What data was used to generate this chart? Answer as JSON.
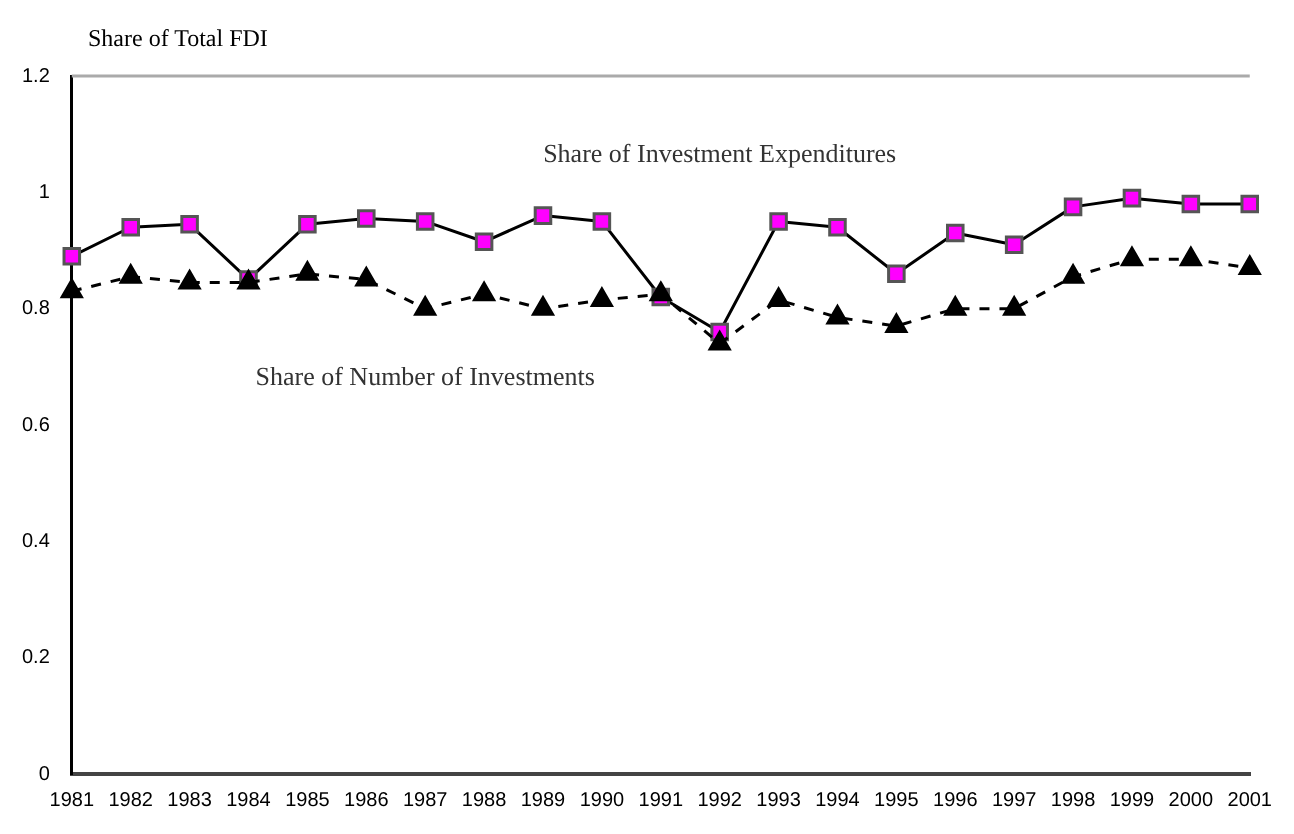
{
  "chart_data": {
    "type": "line",
    "ylabel": "Share of Total FDI",
    "categories": [
      "1981",
      "1982",
      "1983",
      "1984",
      "1985",
      "1986",
      "1987",
      "1988",
      "1989",
      "1990",
      "1991",
      "1992",
      "1993",
      "1994",
      "1995",
      "1996",
      "1997",
      "1998",
      "1999",
      "2000",
      "2001"
    ],
    "series": [
      {
        "name": "Share of Investment Expenditures",
        "color": "#ff00ff",
        "marker": "square",
        "line_style": "solid",
        "values": [
          0.89,
          0.94,
          0.945,
          0.85,
          0.945,
          0.955,
          0.95,
          0.915,
          0.96,
          0.95,
          0.82,
          0.76,
          0.95,
          0.94,
          0.86,
          0.93,
          0.91,
          0.975,
          0.99,
          0.98,
          0.98
        ]
      },
      {
        "name": "Share of Number of Investments",
        "color": "#000000",
        "marker": "triangle",
        "line_style": "dashed",
        "values": [
          0.83,
          0.855,
          0.845,
          0.845,
          0.86,
          0.85,
          0.8,
          0.825,
          0.8,
          0.815,
          0.825,
          0.74,
          0.815,
          0.785,
          0.77,
          0.8,
          0.8,
          0.855,
          0.885,
          0.885,
          0.87
        ]
      }
    ],
    "ylim": [
      0,
      1.2
    ],
    "yticks": [
      0,
      0.2,
      0.4,
      0.6,
      0.8,
      1,
      1.2
    ],
    "grid": false,
    "legend": false
  }
}
